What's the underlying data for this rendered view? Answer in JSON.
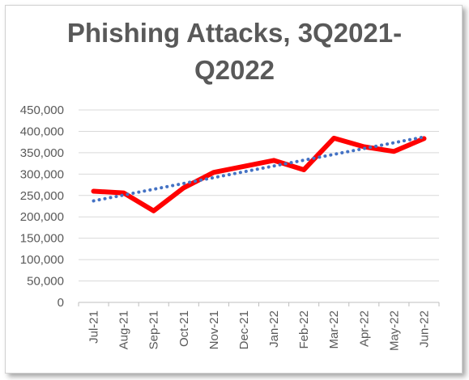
{
  "chart_data": {
    "type": "line",
    "title_lines": [
      "Phishing Attacks, 3Q2021-",
      "Q2022"
    ],
    "categories": [
      "Jul-21",
      "Aug-21",
      "Sep-21",
      "Oct-21",
      "Nov-21",
      "Dec-21",
      "Jan-22",
      "Feb-22",
      "Mar-22",
      "Apr-22",
      "May-22",
      "Jun-22"
    ],
    "series": [
      {
        "values": [
          260000,
          256000,
          214000,
          268000,
          304000,
          318000,
          332000,
          310000,
          384000,
          364000,
          353000,
          383000
        ],
        "color": "#ff0000"
      }
    ],
    "trendline": {
      "style": "dotted",
      "color": "#4472c4",
      "type": "linear"
    },
    "y_ticks": [
      "0",
      "50,000",
      "100,000",
      "150,000",
      "200,000",
      "250,000",
      "300,000",
      "350,000",
      "400,000",
      "450,000"
    ],
    "ylim": [
      0,
      450000
    ],
    "y_step": 50000,
    "grid": true,
    "legend": "none"
  }
}
